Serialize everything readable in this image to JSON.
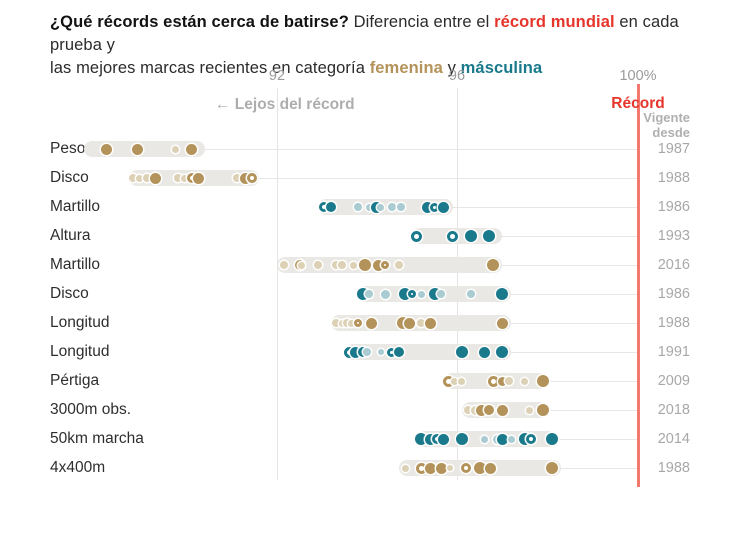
{
  "header": {
    "q": "¿Qué récords están cerca de batirse?",
    "t1": " Diferencia entre el ",
    "record_mundial": "récord mundial",
    "t2": " en cada prueba y",
    "t3": "las mejores marcas recientes en categoría ",
    "femenina": "femenina",
    "t4": " y ",
    "masculina": "másculina"
  },
  "axis": {
    "tick_92": "92",
    "tick_96": "96",
    "tick_100": "100%",
    "far_label": "← Lejos del récord",
    "record_label": "Récord",
    "since_line1": "Vigente",
    "since_line2": "desde"
  },
  "colors": {
    "gold": "#b3935a",
    "gold_light": "#ddd1b5",
    "teal": "#1a7a8c",
    "teal_light": "#a9cbd1",
    "band": "#e9e8e4",
    "connector": "#e9e7e3",
    "grid": "#e4e4e2",
    "record_line": "#f4786e",
    "record_text": "#e6352b"
  },
  "chart_data": {
    "type": "scatter",
    "subtype": "dot-strip-plot",
    "x_axis": {
      "ticks": [
        92,
        96,
        100
      ],
      "unit": "% del récord mundial",
      "record_line_at": 100,
      "xlim": [
        87.5,
        100.3
      ]
    },
    "legend": {
      "femenina": "gold dots",
      "masculina": "teal dots",
      "position": "in-title"
    },
    "right_column_header": "Vigente desde",
    "rows": [
      {
        "label": "Peso",
        "year": "1987",
        "category": "femenina",
        "band": [
          87.7,
          90.4
        ],
        "dots": [
          {
            "x": 88.2,
            "style": "solid",
            "d": 11
          },
          {
            "x": 88.9,
            "style": "solid",
            "d": 11
          },
          {
            "x": 89.75,
            "style": "light",
            "d": 7
          },
          {
            "x": 90.1,
            "style": "solid",
            "d": 11
          }
        ]
      },
      {
        "label": "Disco",
        "year": "1988",
        "category": "femenina",
        "band": [
          88.7,
          91.6
        ],
        "dots": [
          {
            "x": 88.8,
            "style": "light",
            "d": 8
          },
          {
            "x": 88.95,
            "style": "light",
            "d": 7
          },
          {
            "x": 89.1,
            "style": "light",
            "d": 8
          },
          {
            "x": 89.3,
            "style": "solid",
            "d": 11
          },
          {
            "x": 89.8,
            "style": "light",
            "d": 8
          },
          {
            "x": 89.95,
            "style": "light",
            "d": 7
          },
          {
            "x": 90.1,
            "style": "ring",
            "d": 10
          },
          {
            "x": 90.25,
            "style": "solid",
            "d": 11
          },
          {
            "x": 91.1,
            "style": "light",
            "d": 8
          },
          {
            "x": 91.3,
            "style": "solid",
            "d": 11
          },
          {
            "x": 91.45,
            "style": "ring",
            "d": 10
          }
        ]
      },
      {
        "label": "Martillo",
        "year": "1986",
        "category": "masculina",
        "band": [
          92.9,
          95.9
        ],
        "dots": [
          {
            "x": 93.05,
            "style": "ring",
            "d": 10
          },
          {
            "x": 93.2,
            "style": "solid",
            "d": 10
          },
          {
            "x": 93.8,
            "style": "light",
            "d": 8
          },
          {
            "x": 94.05,
            "style": "light",
            "d": 7
          },
          {
            "x": 94.2,
            "style": "solid",
            "d": 11
          },
          {
            "x": 94.3,
            "style": "light",
            "d": 7
          },
          {
            "x": 94.55,
            "style": "light",
            "d": 8
          },
          {
            "x": 94.75,
            "style": "light",
            "d": 8
          },
          {
            "x": 95.35,
            "style": "solid",
            "d": 11
          },
          {
            "x": 95.5,
            "style": "ring",
            "d": 9
          },
          {
            "x": 95.7,
            "style": "solid",
            "d": 11
          }
        ]
      },
      {
        "label": "Altura",
        "year": "1993",
        "category": "masculina",
        "band": [
          95.0,
          97.0
        ],
        "dots": [
          {
            "x": 95.1,
            "style": "ring",
            "d": 11
          },
          {
            "x": 95.9,
            "style": "ring",
            "d": 11
          },
          {
            "x": 96.3,
            "style": "solid",
            "d": 12
          },
          {
            "x": 96.7,
            "style": "solid",
            "d": 12
          }
        ]
      },
      {
        "label": "Martillo",
        "year": "2016",
        "category": "femenina",
        "band": [
          92.0,
          97.0
        ],
        "dots": [
          {
            "x": 92.15,
            "style": "light",
            "d": 8
          },
          {
            "x": 92.5,
            "style": "ring",
            "d": 10
          },
          {
            "x": 92.55,
            "style": "light",
            "d": 7
          },
          {
            "x": 92.9,
            "style": "light",
            "d": 8
          },
          {
            "x": 93.3,
            "style": "light",
            "d": 8
          },
          {
            "x": 93.45,
            "style": "light",
            "d": 8
          },
          {
            "x": 93.7,
            "style": "light",
            "d": 7
          },
          {
            "x": 93.95,
            "style": "solid",
            "d": 12
          },
          {
            "x": 94.25,
            "style": "solid",
            "d": 11
          },
          {
            "x": 94.4,
            "style": "ring",
            "d": 8
          },
          {
            "x": 94.7,
            "style": "light",
            "d": 8
          },
          {
            "x": 96.8,
            "style": "solid",
            "d": 12
          }
        ]
      },
      {
        "label": "Disco",
        "year": "1986",
        "category": "masculina",
        "band": [
          93.8,
          97.2
        ],
        "dots": [
          {
            "x": 93.9,
            "style": "solid",
            "d": 12
          },
          {
            "x": 94.05,
            "style": "light",
            "d": 8
          },
          {
            "x": 94.4,
            "style": "light",
            "d": 9
          },
          {
            "x": 94.85,
            "style": "solid",
            "d": 12
          },
          {
            "x": 95.0,
            "style": "ring",
            "d": 8
          },
          {
            "x": 95.2,
            "style": "light",
            "d": 7
          },
          {
            "x": 95.5,
            "style": "solid",
            "d": 12
          },
          {
            "x": 95.65,
            "style": "light",
            "d": 8
          },
          {
            "x": 96.3,
            "style": "light",
            "d": 8
          },
          {
            "x": 97.0,
            "style": "solid",
            "d": 12
          }
        ]
      },
      {
        "label": "Longitud",
        "year": "1988",
        "category": "femenina",
        "band": [
          93.2,
          97.2
        ],
        "dots": [
          {
            "x": 93.3,
            "style": "light",
            "d": 8
          },
          {
            "x": 93.45,
            "style": "light",
            "d": 7
          },
          {
            "x": 93.55,
            "style": "light",
            "d": 8
          },
          {
            "x": 93.65,
            "style": "light",
            "d": 7
          },
          {
            "x": 93.8,
            "style": "ring",
            "d": 8
          },
          {
            "x": 94.1,
            "style": "solid",
            "d": 11
          },
          {
            "x": 94.8,
            "style": "solid",
            "d": 12
          },
          {
            "x": 94.95,
            "style": "solid",
            "d": 11
          },
          {
            "x": 95.2,
            "style": "light",
            "d": 8
          },
          {
            "x": 95.4,
            "style": "solid",
            "d": 11
          },
          {
            "x": 97.0,
            "style": "solid",
            "d": 11
          }
        ]
      },
      {
        "label": "Longitud",
        "year": "1991",
        "category": "masculina",
        "band": [
          93.5,
          97.2
        ],
        "dots": [
          {
            "x": 93.6,
            "style": "ring",
            "d": 11
          },
          {
            "x": 93.75,
            "style": "solid",
            "d": 11
          },
          {
            "x": 93.9,
            "style": "solid",
            "d": 10
          },
          {
            "x": 94.0,
            "style": "light",
            "d": 8
          },
          {
            "x": 94.3,
            "style": "light",
            "d": 6
          },
          {
            "x": 94.55,
            "style": "ring",
            "d": 9
          },
          {
            "x": 94.7,
            "style": "solid",
            "d": 10
          },
          {
            "x": 96.1,
            "style": "solid",
            "d": 12
          },
          {
            "x": 96.6,
            "style": "solid",
            "d": 11
          },
          {
            "x": 97.0,
            "style": "solid",
            "d": 12
          }
        ]
      },
      {
        "label": "Pértiga",
        "year": "2009",
        "category": "femenina",
        "band": [
          95.7,
          98.0
        ],
        "dots": [
          {
            "x": 95.8,
            "style": "ring",
            "d": 11
          },
          {
            "x": 95.95,
            "style": "light",
            "d": 7
          },
          {
            "x": 96.1,
            "style": "light",
            "d": 7
          },
          {
            "x": 96.8,
            "style": "ring",
            "d": 11
          },
          {
            "x": 97.0,
            "style": "solid",
            "d": 9
          },
          {
            "x": 97.15,
            "style": "light",
            "d": 8
          },
          {
            "x": 97.5,
            "style": "light",
            "d": 7
          },
          {
            "x": 97.9,
            "style": "solid",
            "d": 12
          }
        ]
      },
      {
        "label": "3000m obs.",
        "year": "2018",
        "category": "femenina",
        "band": [
          96.1,
          98.0
        ],
        "dots": [
          {
            "x": 96.25,
            "style": "light",
            "d": 8
          },
          {
            "x": 96.4,
            "style": "light",
            "d": 9
          },
          {
            "x": 96.55,
            "style": "solid",
            "d": 11
          },
          {
            "x": 96.7,
            "style": "solid",
            "d": 10
          },
          {
            "x": 97.0,
            "style": "solid",
            "d": 11
          },
          {
            "x": 97.6,
            "style": "light",
            "d": 7
          },
          {
            "x": 97.9,
            "style": "solid",
            "d": 12
          }
        ]
      },
      {
        "label": "50km marcha",
        "year": "2014",
        "category": "masculina",
        "band": [
          95.1,
          98.2
        ],
        "dots": [
          {
            "x": 95.2,
            "style": "solid",
            "d": 12
          },
          {
            "x": 95.4,
            "style": "solid",
            "d": 11
          },
          {
            "x": 95.55,
            "style": "ring",
            "d": 10
          },
          {
            "x": 95.7,
            "style": "solid",
            "d": 11
          },
          {
            "x": 96.1,
            "style": "solid",
            "d": 12
          },
          {
            "x": 96.6,
            "style": "light",
            "d": 7
          },
          {
            "x": 96.9,
            "style": "light",
            "d": 9
          },
          {
            "x": 97.0,
            "style": "solid",
            "d": 11
          },
          {
            "x": 97.2,
            "style": "light",
            "d": 7
          },
          {
            "x": 97.5,
            "style": "solid",
            "d": 12
          },
          {
            "x": 97.65,
            "style": "ring",
            "d": 10
          },
          {
            "x": 98.1,
            "style": "solid",
            "d": 12
          }
        ]
      },
      {
        "label": "4x400m",
        "year": "1988",
        "category": "femenina",
        "band": [
          94.7,
          98.3
        ],
        "dots": [
          {
            "x": 94.85,
            "style": "light",
            "d": 7
          },
          {
            "x": 95.2,
            "style": "ring",
            "d": 11
          },
          {
            "x": 95.4,
            "style": "solid",
            "d": 11
          },
          {
            "x": 95.65,
            "style": "solid",
            "d": 11
          },
          {
            "x": 95.85,
            "style": "light",
            "d": 6
          },
          {
            "x": 96.2,
            "style": "ring",
            "d": 10
          },
          {
            "x": 96.5,
            "style": "solid",
            "d": 12
          },
          {
            "x": 96.75,
            "style": "solid",
            "d": 11
          },
          {
            "x": 98.1,
            "style": "solid",
            "d": 12
          }
        ]
      }
    ]
  }
}
